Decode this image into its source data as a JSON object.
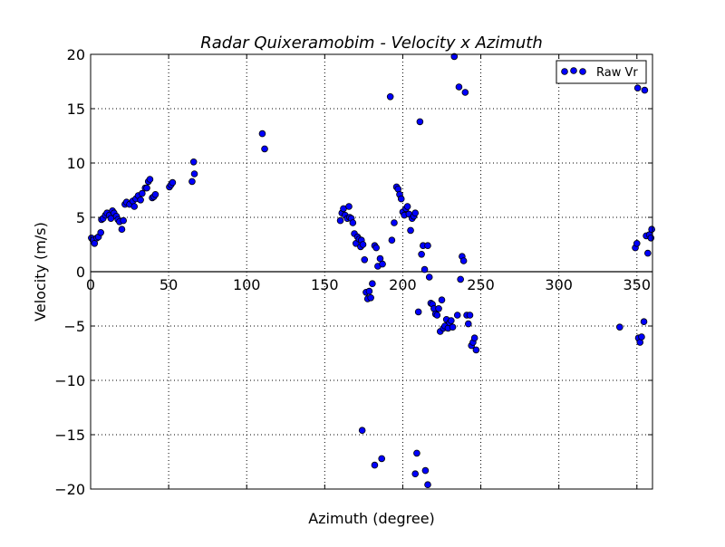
{
  "chart_data": {
    "type": "scatter",
    "title": "Radar Quixeramobim - Velocity x Azimuth",
    "xlabel": "Azimuth (degree)",
    "ylabel": "Velocity (m/s)",
    "xlim": [
      0,
      360
    ],
    "ylim": [
      -20,
      20
    ],
    "x_ticks": [
      0,
      50,
      100,
      150,
      200,
      250,
      300,
      350
    ],
    "y_ticks": [
      -20,
      -15,
      -10,
      -5,
      0,
      5,
      10,
      15,
      20
    ],
    "grid": true,
    "legend_position": "top-right",
    "colors": {
      "marker_fill": "#0000ff",
      "marker_edge": "#000000",
      "grid": "#000000"
    },
    "series": [
      {
        "name": "Raw Vr",
        "points": [
          [
            0.5,
            3.1
          ],
          [
            1.5,
            2.9
          ],
          [
            2.5,
            2.6
          ],
          [
            4,
            3.1
          ],
          [
            5,
            3.2
          ],
          [
            6.5,
            3.6
          ],
          [
            7,
            4.8
          ],
          [
            8,
            4.9
          ],
          [
            9.5,
            5.2
          ],
          [
            10.5,
            5.4
          ],
          [
            12,
            5.2
          ],
          [
            13,
            4.9
          ],
          [
            14,
            5.6
          ],
          [
            15,
            5.4
          ],
          [
            16.5,
            5.1
          ],
          [
            17.5,
            4.8
          ],
          [
            18.5,
            4.6
          ],
          [
            20,
            3.9
          ],
          [
            21,
            4.7
          ],
          [
            22,
            6.2
          ],
          [
            23,
            6.4
          ],
          [
            25,
            6.2
          ],
          [
            27,
            6.5
          ],
          [
            28,
            6.0
          ],
          [
            29,
            6.7
          ],
          [
            30.5,
            7.0
          ],
          [
            32,
            6.6
          ],
          [
            33,
            7.2
          ],
          [
            35,
            7.7
          ],
          [
            36,
            7.7
          ],
          [
            37,
            8.3
          ],
          [
            38,
            8.5
          ],
          [
            39.5,
            6.8
          ],
          [
            40.5,
            6.9
          ],
          [
            41.5,
            7.1
          ],
          [
            50.5,
            7.8
          ],
          [
            51.5,
            8.0
          ],
          [
            52.5,
            8.2
          ],
          [
            65,
            8.3
          ],
          [
            66,
            10.1
          ],
          [
            66.5,
            9.0
          ],
          [
            110,
            12.7
          ],
          [
            111.5,
            11.3
          ],
          [
            160,
            4.7
          ],
          [
            161,
            5.4
          ],
          [
            162,
            5.8
          ],
          [
            163,
            5.2
          ],
          [
            164.5,
            4.9
          ],
          [
            165.5,
            6.0
          ],
          [
            166,
            5.0
          ],
          [
            167,
            4.9
          ],
          [
            168,
            4.5
          ],
          [
            169,
            3.5
          ],
          [
            170,
            2.6
          ],
          [
            171,
            3.2
          ],
          [
            172,
            3.0
          ],
          [
            173,
            2.3
          ],
          [
            173.5,
            2.9
          ],
          [
            174.5,
            2.5
          ],
          [
            175.5,
            1.1
          ],
          [
            176.5,
            -1.9
          ],
          [
            177.5,
            -2.5
          ],
          [
            178.5,
            -1.8
          ],
          [
            179.5,
            -2.4
          ],
          [
            180.5,
            -1.1
          ],
          [
            182,
            2.4
          ],
          [
            183,
            2.2
          ],
          [
            184,
            0.5
          ],
          [
            185.5,
            1.2
          ],
          [
            187,
            0.7
          ],
          [
            192,
            16.1
          ],
          [
            193,
            2.9
          ],
          [
            194.5,
            4.5
          ],
          [
            196,
            7.8
          ],
          [
            197,
            7.6
          ],
          [
            198,
            7.1
          ],
          [
            199,
            6.7
          ],
          [
            200,
            5.5
          ],
          [
            201,
            5.2
          ],
          [
            202,
            5.8
          ],
          [
            203,
            6.0
          ],
          [
            204,
            5.3
          ],
          [
            205,
            3.8
          ],
          [
            206,
            4.9
          ],
          [
            207,
            5.1
          ],
          [
            208,
            5.4
          ],
          [
            210,
            -3.7
          ],
          [
            211,
            13.8
          ],
          [
            212,
            1.6
          ],
          [
            213,
            2.4
          ],
          [
            214,
            0.2
          ],
          [
            216,
            2.4
          ],
          [
            217,
            -0.5
          ],
          [
            218,
            -2.9
          ],
          [
            219,
            -3.0
          ],
          [
            220,
            -3.4
          ],
          [
            221,
            -3.9
          ],
          [
            222,
            -4.0
          ],
          [
            223,
            -3.4
          ],
          [
            224,
            -5.5
          ],
          [
            225,
            -2.6
          ],
          [
            226,
            -5.2
          ],
          [
            227,
            -5.0
          ],
          [
            228,
            -4.4
          ],
          [
            229,
            -5.2
          ],
          [
            230,
            -4.7
          ],
          [
            231,
            -4.5
          ],
          [
            232,
            -5.1
          ],
          [
            233,
            19.8
          ],
          [
            235,
            -4.0
          ],
          [
            236,
            17.0
          ],
          [
            237,
            -0.7
          ],
          [
            238,
            1.4
          ],
          [
            239,
            1.0
          ],
          [
            240,
            16.5
          ],
          [
            241,
            -4.0
          ],
          [
            242,
            -4.8
          ],
          [
            243,
            -4.0
          ],
          [
            244,
            -6.8
          ],
          [
            245,
            -6.5
          ],
          [
            246,
            -6.1
          ],
          [
            247,
            -7.2
          ],
          [
            174,
            -14.6
          ],
          [
            182,
            -17.8
          ],
          [
            186.5,
            -17.2
          ],
          [
            208,
            -18.6
          ],
          [
            209,
            -16.7
          ],
          [
            214.5,
            -18.3
          ],
          [
            216,
            -19.6
          ],
          [
            339,
            -5.1
          ],
          [
            349,
            2.2
          ],
          [
            350,
            2.6
          ],
          [
            350.5,
            16.9
          ],
          [
            351,
            -6.1
          ],
          [
            352,
            -6.5
          ],
          [
            353,
            -6.0
          ],
          [
            354.5,
            -4.6
          ],
          [
            355,
            16.7
          ],
          [
            356,
            3.3
          ],
          [
            357,
            1.7
          ],
          [
            358,
            3.4
          ],
          [
            359,
            3.1
          ],
          [
            359.5,
            3.9
          ]
        ]
      }
    ]
  }
}
